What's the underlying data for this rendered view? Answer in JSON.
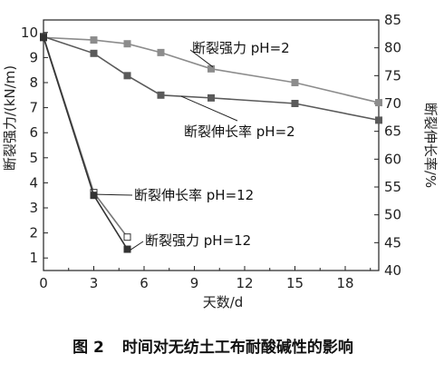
{
  "chart_data": {
    "type": "line",
    "xlabel": "天数/d",
    "ylabel_left": "断裂强力/(kN/m)",
    "ylabel_right": "断裂伸长率/%",
    "xlim": [
      0,
      20
    ],
    "ylim_left": [
      0.5,
      10.5
    ],
    "ylim_right": [
      40,
      85
    ],
    "x_ticks": [
      0,
      3,
      6,
      9,
      12,
      15,
      18
    ],
    "y_ticks_left": [
      1,
      2,
      3,
      4,
      5,
      6,
      7,
      8,
      9,
      10
    ],
    "y_ticks_right": [
      40,
      45,
      50,
      55,
      60,
      65,
      70,
      75,
      80,
      85
    ],
    "grid": false,
    "series": [
      {
        "name": "断裂强力 pH=2",
        "axis": "left",
        "marker": "square-filled",
        "color": "#8c8c8c",
        "x": [
          0,
          3,
          5,
          7,
          10,
          15,
          20
        ],
        "y": [
          9.8,
          9.7,
          9.55,
          9.2,
          8.55,
          8.0,
          7.2
        ]
      },
      {
        "name": "断裂伸长率 pH=2",
        "axis": "right",
        "marker": "square-filled",
        "color": "#5a5a5a",
        "x": [
          0,
          3,
          5,
          7,
          10,
          15,
          20
        ],
        "y": [
          82,
          79,
          75,
          71.5,
          71,
          70,
          67
        ]
      },
      {
        "name": "断裂伸长率 pH=12",
        "axis": "right",
        "marker": "square-open",
        "color": "#777777",
        "x": [
          0,
          3,
          5
        ],
        "y": [
          82,
          54,
          46
        ]
      },
      {
        "name": "断裂强力 pH=12",
        "axis": "left",
        "marker": "square-filled",
        "color": "#333333",
        "x": [
          0,
          3,
          5
        ],
        "y": [
          9.8,
          3.5,
          1.35
        ]
      }
    ],
    "annotations": [
      "断裂强力 pH=2",
      "断裂伸长率 pH=2",
      "断裂伸长率 pH=12",
      "断裂强力 pH=12"
    ]
  },
  "caption": {
    "number": "图 2",
    "text": "时间对无纺土工布耐酸碱性的影响"
  }
}
